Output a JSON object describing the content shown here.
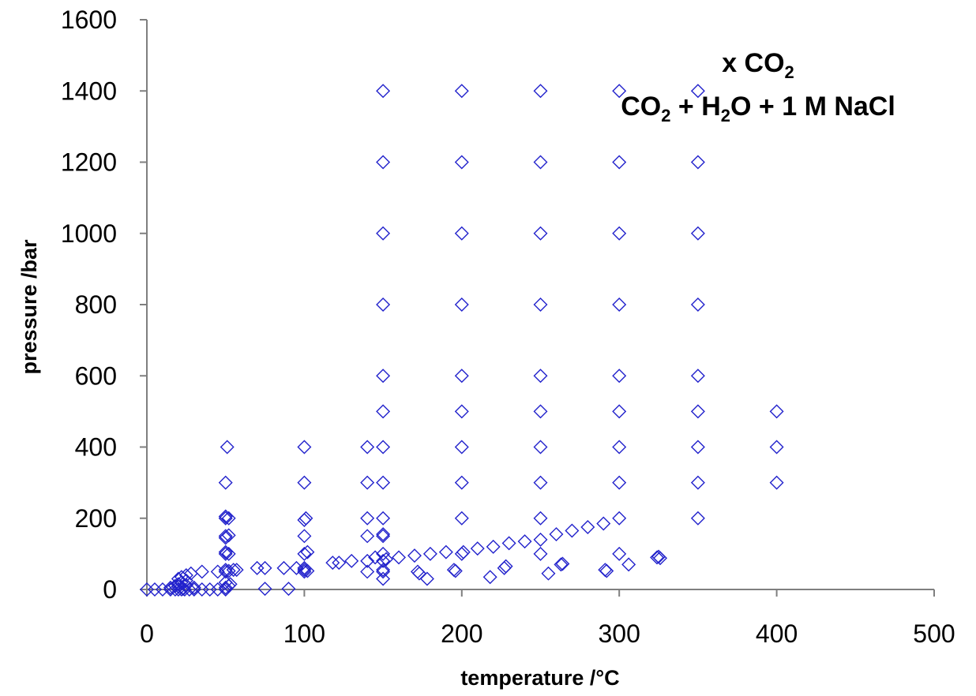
{
  "chart_data": {
    "type": "scatter",
    "xlabel": "temperature /°C",
    "ylabel": "pressure /bar",
    "xlim": [
      0,
      500
    ],
    "ylim": [
      0,
      1600
    ],
    "xticks": [
      "0",
      "100",
      "200",
      "300",
      "400",
      "500"
    ],
    "yticks": [
      "0",
      "200",
      "400",
      "600",
      "800",
      "1000",
      "1200",
      "1400",
      "1600"
    ],
    "grid": false,
    "legend": "none",
    "marker": "open-diamond",
    "marker_color": "#2222cc",
    "annotation": {
      "line1": {
        "prefix": "x CO",
        "sub": "2"
      },
      "line2": [
        {
          "t": "CO"
        },
        {
          "t": "2",
          "sub": true
        },
        {
          "t": " + H"
        },
        {
          "t": "2",
          "sub": true
        },
        {
          "t": "O + 1 M NaCl"
        }
      ]
    },
    "points": [
      [
        0,
        0
      ],
      [
        5,
        0
      ],
      [
        10,
        0
      ],
      [
        15,
        0
      ],
      [
        18,
        0
      ],
      [
        20,
        0
      ],
      [
        22,
        0
      ],
      [
        24,
        0
      ],
      [
        27,
        0
      ],
      [
        30,
        0
      ],
      [
        35,
        0
      ],
      [
        40,
        0
      ],
      [
        45,
        0
      ],
      [
        50,
        0
      ],
      [
        15,
        5
      ],
      [
        18,
        10
      ],
      [
        20,
        15
      ],
      [
        22,
        20
      ],
      [
        25,
        25
      ],
      [
        20,
        30
      ],
      [
        22,
        35
      ],
      [
        25,
        40
      ],
      [
        28,
        45
      ],
      [
        20,
        8
      ],
      [
        25,
        12
      ],
      [
        30,
        5
      ],
      [
        23,
        2
      ],
      [
        35,
        50
      ],
      [
        45,
        50
      ],
      [
        50,
        50
      ],
      [
        50,
        55
      ],
      [
        52,
        52
      ],
      [
        55,
        55
      ],
      [
        57,
        55
      ],
      [
        50,
        100
      ],
      [
        50,
        105
      ],
      [
        52,
        100
      ],
      [
        50,
        150
      ],
      [
        52,
        152
      ],
      [
        50,
        145
      ],
      [
        50,
        200
      ],
      [
        52,
        200
      ],
      [
        50,
        205
      ],
      [
        50,
        300
      ],
      [
        51,
        400
      ],
      [
        50,
        5
      ],
      [
        52,
        10
      ],
      [
        50,
        20
      ],
      [
        53,
        15
      ],
      [
        70,
        60
      ],
      [
        75,
        60
      ],
      [
        87,
        60
      ],
      [
        95,
        60
      ],
      [
        100,
        60
      ],
      [
        100,
        55
      ],
      [
        100,
        50
      ],
      [
        102,
        52
      ],
      [
        100,
        100
      ],
      [
        102,
        105
      ],
      [
        100,
        150
      ],
      [
        100,
        195
      ],
      [
        101,
        200
      ],
      [
        100,
        300
      ],
      [
        100,
        400
      ],
      [
        75,
        2
      ],
      [
        90,
        2
      ],
      [
        118,
        75
      ],
      [
        122,
        75
      ],
      [
        130,
        80
      ],
      [
        140,
        80
      ],
      [
        140,
        50
      ],
      [
        140,
        150
      ],
      [
        140,
        200
      ],
      [
        140,
        300
      ],
      [
        140,
        400
      ],
      [
        145,
        90
      ],
      [
        150,
        30
      ],
      [
        150,
        50
      ],
      [
        150,
        55
      ],
      [
        150,
        80
      ],
      [
        152,
        85
      ],
      [
        150,
        100
      ],
      [
        150,
        150
      ],
      [
        150,
        155
      ],
      [
        150,
        200
      ],
      [
        150,
        300
      ],
      [
        150,
        400
      ],
      [
        150,
        500
      ],
      [
        150,
        600
      ],
      [
        150,
        800
      ],
      [
        150,
        1000
      ],
      [
        150,
        1200
      ],
      [
        150,
        1400
      ],
      [
        160,
        90
      ],
      [
        170,
        95
      ],
      [
        172,
        50
      ],
      [
        173,
        45
      ],
      [
        178,
        30
      ],
      [
        180,
        100
      ],
      [
        190,
        105
      ],
      [
        195,
        55
      ],
      [
        196,
        52
      ],
      [
        200,
        100
      ],
      [
        201,
        105
      ],
      [
        200,
        200
      ],
      [
        200,
        300
      ],
      [
        200,
        400
      ],
      [
        200,
        500
      ],
      [
        200,
        600
      ],
      [
        200,
        800
      ],
      [
        200,
        1000
      ],
      [
        200,
        1200
      ],
      [
        200,
        1400
      ],
      [
        210,
        115
      ],
      [
        218,
        35
      ],
      [
        220,
        120
      ],
      [
        227,
        60
      ],
      [
        228,
        65
      ],
      [
        230,
        130
      ],
      [
        240,
        135
      ],
      [
        250,
        140
      ],
      [
        250,
        100
      ],
      [
        250,
        200
      ],
      [
        250,
        300
      ],
      [
        250,
        400
      ],
      [
        250,
        500
      ],
      [
        250,
        600
      ],
      [
        250,
        800
      ],
      [
        250,
        1000
      ],
      [
        250,
        1200
      ],
      [
        250,
        1400
      ],
      [
        255,
        45
      ],
      [
        260,
        155
      ],
      [
        263,
        70
      ],
      [
        264,
        72
      ],
      [
        270,
        165
      ],
      [
        280,
        175
      ],
      [
        290,
        185
      ],
      [
        291,
        55
      ],
      [
        292,
        52
      ],
      [
        300,
        200
      ],
      [
        300,
        100
      ],
      [
        300,
        300
      ],
      [
        300,
        400
      ],
      [
        300,
        500
      ],
      [
        300,
        600
      ],
      [
        300,
        800
      ],
      [
        300,
        1000
      ],
      [
        300,
        1200
      ],
      [
        300,
        1400
      ],
      [
        306,
        70
      ],
      [
        324,
        90
      ],
      [
        325,
        92
      ],
      [
        326,
        88
      ],
      [
        350,
        200
      ],
      [
        350,
        300
      ],
      [
        350,
        400
      ],
      [
        350,
        500
      ],
      [
        350,
        600
      ],
      [
        350,
        800
      ],
      [
        350,
        1000
      ],
      [
        350,
        1200
      ],
      [
        350,
        1400
      ],
      [
        400,
        300
      ],
      [
        400,
        400
      ],
      [
        400,
        500
      ]
    ]
  }
}
